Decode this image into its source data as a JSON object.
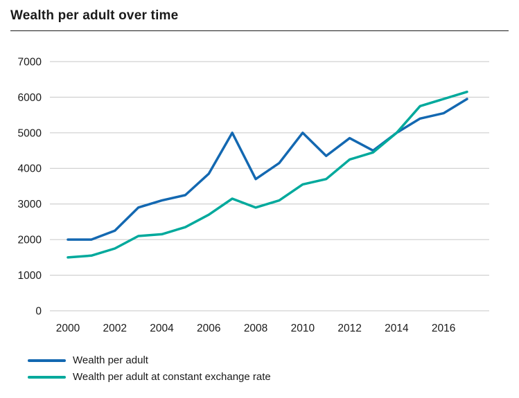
{
  "page": {
    "title": "Wealth per adult over time"
  },
  "chart_data": {
    "type": "line",
    "title": "Wealth per adult over time",
    "x": [
      2000,
      2001,
      2002,
      2003,
      2004,
      2005,
      2006,
      2007,
      2008,
      2009,
      2010,
      2011,
      2012,
      2013,
      2014,
      2015,
      2016,
      2017
    ],
    "series": [
      {
        "name": "Wealth per adult",
        "color": "#1368b1",
        "values": [
          2000,
          2000,
          2250,
          2900,
          3100,
          3250,
          3850,
          5000,
          3700,
          4150,
          5000,
          4350,
          4850,
          4500,
          5000,
          5400,
          5550,
          5950
        ]
      },
      {
        "name": "Wealth per adult at constant exchange rate",
        "color": "#00a99c",
        "values": [
          1500,
          1550,
          1750,
          2100,
          2150,
          2350,
          2700,
          3150,
          2900,
          3100,
          3550,
          3700,
          4250,
          4450,
          5000,
          5750,
          5950,
          6150
        ]
      }
    ],
    "ylim": [
      0,
      7000
    ],
    "ytick_step": 1000,
    "yticks": [
      0,
      1000,
      2000,
      3000,
      4000,
      5000,
      6000,
      7000
    ],
    "xticks": [
      2000,
      2002,
      2004,
      2006,
      2008,
      2010,
      2012,
      2014,
      2016
    ],
    "grid": true,
    "gridline_color": "#c6c6c6",
    "legend_position": "bottom"
  }
}
